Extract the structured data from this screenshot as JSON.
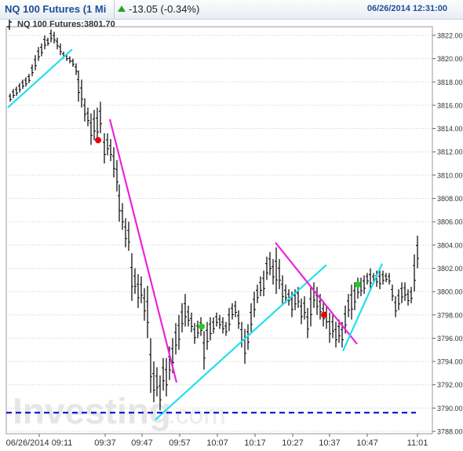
{
  "header": {
    "title": "NQ 100 Futures (1 Mi",
    "change": "-13.05 (-0.34%)",
    "datetime": "06/26/2014 12:31:00",
    "change_arrow_color": "#2aa02a"
  },
  "legend": {
    "label": "NQ 100 Futures:3801.70",
    "icon": "ohlc-bar-icon"
  },
  "watermark": {
    "text": "Investing",
    "suffix": ".com"
  },
  "colors": {
    "bars": "#000000",
    "uptrend": "#22e0ee",
    "downtrend": "#ee22dd",
    "buy_dot": "#22cc22",
    "sell_dot": "#ee0000",
    "support_line": "#0000cc",
    "grid": "#cccccc"
  },
  "chart_data": {
    "type": "ohlc",
    "ylim": [
      3788,
      3823
    ],
    "y_ticks": [
      "3822.00",
      "3820.00",
      "3818.00",
      "3816.00",
      "3814.00",
      "3812.00",
      "3810.00",
      "3808.00",
      "3806.00",
      "3804.00",
      "3802.00",
      "3800.00",
      "3798.00",
      "3796.00",
      "3794.00",
      "3792.00",
      "3790.00",
      "3788.00"
    ],
    "x_ticks": [
      "06/26/2014 09:11",
      "09:37",
      "09:47",
      "09:57",
      "10:07",
      "10:17",
      "10:27",
      "10:37",
      "10:47",
      "11:01"
    ],
    "bars": [
      {
        "x": 13,
        "low": 3816.3,
        "high": 3817.0
      },
      {
        "x": 17,
        "low": 3816.6,
        "high": 3817.4
      },
      {
        "x": 21,
        "low": 3816.8,
        "high": 3817.6
      },
      {
        "x": 25,
        "low": 3817.1,
        "high": 3817.9
      },
      {
        "x": 29,
        "low": 3817.4,
        "high": 3818.2
      },
      {
        "x": 33,
        "low": 3817.6,
        "high": 3818.4
      },
      {
        "x": 37,
        "low": 3817.9,
        "high": 3818.7
      },
      {
        "x": 41,
        "low": 3818.5,
        "high": 3819.5
      },
      {
        "x": 45,
        "low": 3819.0,
        "high": 3820.3
      },
      {
        "x": 49,
        "low": 3819.8,
        "high": 3821.0
      },
      {
        "x": 53,
        "low": 3820.2,
        "high": 3821.3
      },
      {
        "x": 57,
        "low": 3820.8,
        "high": 3822.0
      },
      {
        "x": 61,
        "low": 3821.1,
        "high": 3821.8
      },
      {
        "x": 65,
        "low": 3821.4,
        "high": 3822.5
      },
      {
        "x": 69,
        "low": 3821.3,
        "high": 3822.3
      },
      {
        "x": 73,
        "low": 3820.8,
        "high": 3821.8
      },
      {
        "x": 77,
        "low": 3820.3,
        "high": 3821.3
      },
      {
        "x": 81,
        "low": 3820.0,
        "high": 3820.6
      },
      {
        "x": 85,
        "low": 3819.8,
        "high": 3820.4
      },
      {
        "x": 89,
        "low": 3819.6,
        "high": 3820.2
      },
      {
        "x": 93,
        "low": 3819.3,
        "high": 3820.0
      },
      {
        "x": 97,
        "low": 3818.6,
        "high": 3819.6
      },
      {
        "x": 100,
        "low": 3816.3,
        "high": 3819.0
      },
      {
        "x": 104,
        "low": 3815.8,
        "high": 3818.2
      },
      {
        "x": 108,
        "low": 3814.6,
        "high": 3816.6
      },
      {
        "x": 112,
        "low": 3814.2,
        "high": 3815.8
      },
      {
        "x": 116,
        "low": 3812.6,
        "high": 3815.3
      },
      {
        "x": 120,
        "low": 3813.0,
        "high": 3815.6
      },
      {
        "x": 124,
        "low": 3812.8,
        "high": 3815.8
      },
      {
        "x": 128,
        "low": 3813.6,
        "high": 3816.3
      },
      {
        "x": 133,
        "low": 3811.0,
        "high": 3813.6
      },
      {
        "x": 137,
        "low": 3811.7,
        "high": 3813.6
      },
      {
        "x": 141,
        "low": 3811.2,
        "high": 3813.1
      },
      {
        "x": 145,
        "low": 3809.8,
        "high": 3812.4
      },
      {
        "x": 149,
        "low": 3808.6,
        "high": 3811.3
      },
      {
        "x": 152,
        "low": 3806.0,
        "high": 3809.2
      },
      {
        "x": 156,
        "low": 3805.3,
        "high": 3807.6
      },
      {
        "x": 160,
        "low": 3803.8,
        "high": 3806.3
      },
      {
        "x": 164,
        "low": 3803.5,
        "high": 3806.0
      },
      {
        "x": 168,
        "low": 3799.2,
        "high": 3803.3
      },
      {
        "x": 172,
        "low": 3799.8,
        "high": 3802.0
      },
      {
        "x": 176,
        "low": 3798.6,
        "high": 3801.5
      },
      {
        "x": 180,
        "low": 3799.0,
        "high": 3801.3
      },
      {
        "x": 184,
        "low": 3797.5,
        "high": 3800.3
      },
      {
        "x": 188,
        "low": 3796.0,
        "high": 3800.5
      },
      {
        "x": 192,
        "low": 3791.3,
        "high": 3796.0
      },
      {
        "x": 196,
        "low": 3790.5,
        "high": 3794.0
      },
      {
        "x": 200,
        "low": 3791.0,
        "high": 3793.5
      },
      {
        "x": 204,
        "low": 3789.8,
        "high": 3792.8
      },
      {
        "x": 208,
        "low": 3791.5,
        "high": 3794.3
      },
      {
        "x": 212,
        "low": 3791.0,
        "high": 3794.3
      },
      {
        "x": 216,
        "low": 3792.4,
        "high": 3795.3
      },
      {
        "x": 220,
        "low": 3793.0,
        "high": 3796.0
      },
      {
        "x": 224,
        "low": 3794.6,
        "high": 3797.3
      },
      {
        "x": 228,
        "low": 3795.0,
        "high": 3798.0
      },
      {
        "x": 232,
        "low": 3796.5,
        "high": 3799.0
      },
      {
        "x": 236,
        "low": 3797.0,
        "high": 3799.8
      },
      {
        "x": 240,
        "low": 3797.0,
        "high": 3798.8
      },
      {
        "x": 244,
        "low": 3796.5,
        "high": 3798.2
      },
      {
        "x": 248,
        "low": 3795.5,
        "high": 3797.3
      },
      {
        "x": 252,
        "low": 3796.0,
        "high": 3797.5
      },
      {
        "x": 256,
        "low": 3796.2,
        "high": 3797.8
      },
      {
        "x": 260,
        "low": 3793.3,
        "high": 3796.6
      },
      {
        "x": 264,
        "low": 3795.0,
        "high": 3797.4
      },
      {
        "x": 268,
        "low": 3795.8,
        "high": 3797.8
      },
      {
        "x": 272,
        "low": 3796.4,
        "high": 3797.8
      },
      {
        "x": 276,
        "low": 3797.0,
        "high": 3798.2
      },
      {
        "x": 280,
        "low": 3796.8,
        "high": 3798.0
      },
      {
        "x": 284,
        "low": 3796.4,
        "high": 3797.8
      },
      {
        "x": 288,
        "low": 3796.2,
        "high": 3797.4
      },
      {
        "x": 292,
        "low": 3796.6,
        "high": 3798.6
      },
      {
        "x": 296,
        "low": 3797.6,
        "high": 3799.0
      },
      {
        "x": 300,
        "low": 3797.8,
        "high": 3799.2
      },
      {
        "x": 304,
        "low": 3796.8,
        "high": 3798.4
      },
      {
        "x": 308,
        "low": 3795.2,
        "high": 3797.4
      },
      {
        "x": 312,
        "low": 3793.8,
        "high": 3796.8
      },
      {
        "x": 316,
        "low": 3795.0,
        "high": 3797.2
      },
      {
        "x": 320,
        "low": 3796.4,
        "high": 3799.0
      },
      {
        "x": 324,
        "low": 3797.8,
        "high": 3800.0
      },
      {
        "x": 328,
        "low": 3799.0,
        "high": 3800.6
      },
      {
        "x": 332,
        "low": 3799.6,
        "high": 3801.3
      },
      {
        "x": 336,
        "low": 3799.6,
        "high": 3801.8
      },
      {
        "x": 340,
        "low": 3801.0,
        "high": 3803.0
      },
      {
        "x": 344,
        "low": 3801.4,
        "high": 3803.4
      },
      {
        "x": 348,
        "low": 3800.6,
        "high": 3802.8
      },
      {
        "x": 352,
        "low": 3799.8,
        "high": 3803.8
      },
      {
        "x": 356,
        "low": 3800.2,
        "high": 3802.8
      },
      {
        "x": 360,
        "low": 3798.8,
        "high": 3801.4
      },
      {
        "x": 364,
        "low": 3799.0,
        "high": 3800.6
      },
      {
        "x": 368,
        "low": 3798.8,
        "high": 3800.2
      },
      {
        "x": 372,
        "low": 3797.8,
        "high": 3800.0
      },
      {
        "x": 376,
        "low": 3798.4,
        "high": 3800.2
      },
      {
        "x": 380,
        "low": 3798.6,
        "high": 3800.4
      },
      {
        "x": 384,
        "low": 3797.2,
        "high": 3799.4
      },
      {
        "x": 388,
        "low": 3797.6,
        "high": 3799.6
      },
      {
        "x": 392,
        "low": 3796.0,
        "high": 3798.6
      },
      {
        "x": 396,
        "low": 3797.0,
        "high": 3800.4
      },
      {
        "x": 400,
        "low": 3798.6,
        "high": 3800.8
      },
      {
        "x": 404,
        "low": 3798.0,
        "high": 3800.4
      },
      {
        "x": 408,
        "low": 3797.6,
        "high": 3799.8
      },
      {
        "x": 412,
        "low": 3797.0,
        "high": 3799.2
      },
      {
        "x": 416,
        "low": 3796.8,
        "high": 3798.8
      },
      {
        "x": 420,
        "low": 3795.6,
        "high": 3798.2
      },
      {
        "x": 424,
        "low": 3796.0,
        "high": 3798.0
      },
      {
        "x": 428,
        "low": 3795.2,
        "high": 3797.4
      },
      {
        "x": 432,
        "low": 3795.6,
        "high": 3797.6
      },
      {
        "x": 436,
        "low": 3795.2,
        "high": 3797.4
      },
      {
        "x": 440,
        "low": 3796.4,
        "high": 3798.8
      },
      {
        "x": 444,
        "low": 3797.8,
        "high": 3799.8
      },
      {
        "x": 448,
        "low": 3797.6,
        "high": 3800.6
      },
      {
        "x": 452,
        "low": 3798.4,
        "high": 3800.8
      },
      {
        "x": 456,
        "low": 3799.4,
        "high": 3801.2
      },
      {
        "x": 460,
        "low": 3799.6,
        "high": 3801.2
      },
      {
        "x": 464,
        "low": 3799.8,
        "high": 3801.4
      },
      {
        "x": 468,
        "low": 3800.6,
        "high": 3801.6
      },
      {
        "x": 472,
        "low": 3800.2,
        "high": 3802.0
      },
      {
        "x": 476,
        "low": 3800.6,
        "high": 3801.6
      },
      {
        "x": 480,
        "low": 3800.4,
        "high": 3801.8
      },
      {
        "x": 484,
        "low": 3800.2,
        "high": 3801.8
      },
      {
        "x": 488,
        "low": 3800.6,
        "high": 3801.8
      },
      {
        "x": 492,
        "low": 3800.8,
        "high": 3801.6
      },
      {
        "x": 496,
        "low": 3800.6,
        "high": 3801.6
      },
      {
        "x": 500,
        "low": 3799.2,
        "high": 3800.6
      },
      {
        "x": 504,
        "low": 3797.8,
        "high": 3799.6
      },
      {
        "x": 508,
        "low": 3798.4,
        "high": 3800.2
      },
      {
        "x": 512,
        "low": 3799.0,
        "high": 3800.8
      },
      {
        "x": 516,
        "low": 3799.2,
        "high": 3800.8
      },
      {
        "x": 520,
        "low": 3798.8,
        "high": 3800.2
      },
      {
        "x": 524,
        "low": 3799.0,
        "high": 3800.4
      },
      {
        "x": 528,
        "low": 3800.0,
        "high": 3803.2
      },
      {
        "x": 532,
        "low": 3802.0,
        "high": 3804.8
      }
    ],
    "trendlines": [
      {
        "kind": "up",
        "x1": 10,
        "y1": 3815.8,
        "x2": 92,
        "y2": 3820.8
      },
      {
        "kind": "down",
        "x1": 140,
        "y1": 3814.8,
        "x2": 225,
        "y2": 3792.2
      },
      {
        "kind": "up",
        "x1": 198,
        "y1": 3789.0,
        "x2": 416,
        "y2": 3802.3
      },
      {
        "kind": "down",
        "x1": 351,
        "y1": 3804.2,
        "x2": 455,
        "y2": 3795.5
      },
      {
        "kind": "up",
        "x1": 437,
        "y1": 3794.9,
        "x2": 487,
        "y2": 3802.4
      }
    ],
    "signals": [
      {
        "kind": "sell",
        "x": 125,
        "y": 3813.0
      },
      {
        "kind": "buy",
        "x": 257,
        "y": 3797.0
      },
      {
        "kind": "sell",
        "x": 413,
        "y": 3798.0
      },
      {
        "kind": "buy",
        "x": 456,
        "y": 3800.6
      }
    ],
    "support_level": 3789.6
  }
}
